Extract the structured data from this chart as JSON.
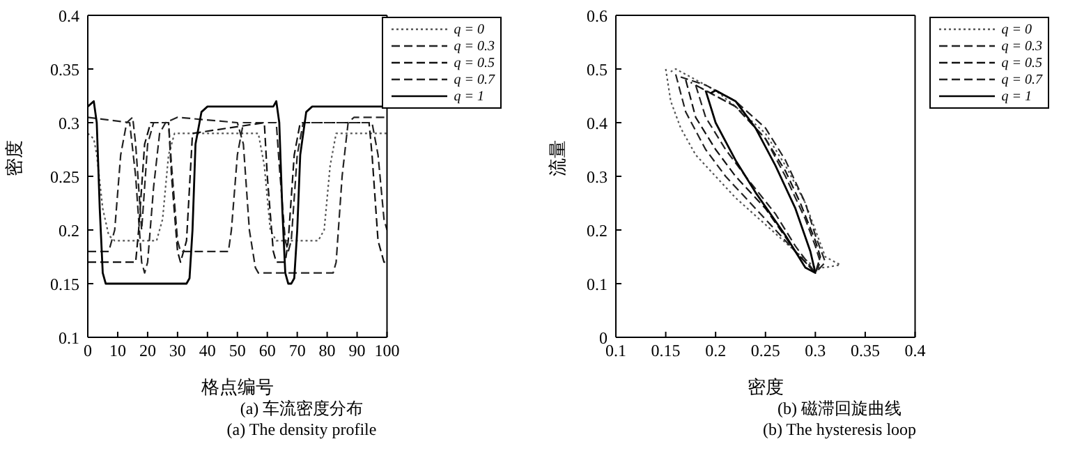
{
  "chart_data": [
    {
      "type": "line",
      "xlabel": "格点编号",
      "ylabel": "密度",
      "annotations": [
        "(a) 车流密度分布",
        "(a) The density profile"
      ],
      "xlim": [
        0,
        100
      ],
      "ylim": [
        0.1,
        0.4
      ],
      "xticks": [
        0,
        10,
        20,
        30,
        40,
        50,
        60,
        70,
        80,
        90,
        100
      ],
      "yticks": [
        0.1,
        0.15,
        0.2,
        0.25,
        0.3,
        0.35,
        0.4
      ],
      "legend": "top right",
      "series": [
        {
          "name": "q = 0",
          "color": "#555555",
          "line_style": "dotted",
          "x": [
            0,
            2,
            3,
            5,
            7,
            9,
            23,
            25,
            27,
            29,
            57,
            59,
            61,
            63,
            77,
            79,
            81,
            83,
            100
          ],
          "values": [
            0.29,
            0.285,
            0.27,
            0.22,
            0.195,
            0.19,
            0.19,
            0.21,
            0.27,
            0.29,
            0.29,
            0.26,
            0.2,
            0.19,
            0.19,
            0.2,
            0.26,
            0.29,
            0.29
          ]
        },
        {
          "name": "q = 0.3",
          "color": "#222222",
          "line_style": "dashed",
          "x": [
            0,
            14,
            16,
            18,
            19,
            20,
            22,
            24,
            26,
            30,
            50,
            52,
            54,
            56,
            57,
            82,
            83,
            85,
            87,
            89,
            100
          ],
          "values": [
            0.305,
            0.3,
            0.25,
            0.17,
            0.16,
            0.17,
            0.24,
            0.29,
            0.3,
            0.305,
            0.3,
            0.28,
            0.2,
            0.165,
            0.16,
            0.16,
            0.17,
            0.25,
            0.3,
            0.305,
            0.305
          ]
        },
        {
          "name": "q = 0.5",
          "color": "#111111",
          "line_style": "dashed",
          "x": [
            0,
            16,
            17,
            19,
            21,
            27,
            28,
            30,
            31,
            33,
            35,
            59,
            60,
            62,
            63,
            66,
            67,
            69,
            71,
            94,
            95,
            97,
            99,
            100
          ],
          "values": [
            0.17,
            0.17,
            0.2,
            0.28,
            0.3,
            0.3,
            0.25,
            0.18,
            0.17,
            0.19,
            0.29,
            0.3,
            0.25,
            0.18,
            0.17,
            0.17,
            0.19,
            0.27,
            0.3,
            0.3,
            0.27,
            0.19,
            0.17,
            0.17
          ]
        },
        {
          "name": "q = 0.7",
          "color": "#222222",
          "line_style": "dashed",
          "x": [
            0,
            7,
            9,
            11,
            13,
            15,
            16,
            18,
            20,
            22,
            27,
            28,
            30,
            31,
            47,
            48,
            50,
            52,
            63,
            64,
            66,
            67,
            68,
            70,
            72,
            95,
            97,
            99,
            100
          ],
          "values": [
            0.18,
            0.18,
            0.2,
            0.27,
            0.3,
            0.305,
            0.28,
            0.2,
            0.28,
            0.3,
            0.3,
            0.26,
            0.19,
            0.18,
            0.18,
            0.2,
            0.27,
            0.3,
            0.3,
            0.26,
            0.19,
            0.18,
            0.19,
            0.27,
            0.3,
            0.3,
            0.27,
            0.21,
            0.2
          ]
        },
        {
          "name": "q = 1",
          "color": "#000000",
          "line_style": "solid",
          "x": [
            0,
            2,
            3,
            4,
            5,
            6,
            33,
            34,
            35,
            36,
            38,
            40,
            62,
            63,
            64,
            65,
            66,
            67,
            68,
            69,
            70,
            71,
            73,
            75,
            100
          ],
          "values": [
            0.315,
            0.32,
            0.3,
            0.22,
            0.16,
            0.15,
            0.15,
            0.155,
            0.2,
            0.28,
            0.31,
            0.315,
            0.315,
            0.32,
            0.3,
            0.22,
            0.16,
            0.15,
            0.15,
            0.155,
            0.2,
            0.27,
            0.31,
            0.315,
            0.315
          ]
        }
      ]
    },
    {
      "type": "line",
      "xlabel": "密度",
      "ylabel": "流量",
      "annotations": [
        "(b) 磁滞回旋曲线",
        "(b) The hysteresis loop"
      ],
      "xlim": [
        0.1,
        0.4
      ],
      "ylim": [
        0,
        0.6
      ],
      "xticks": [
        0.1,
        0.15,
        0.2,
        0.25,
        0.3,
        0.35,
        0.4
      ],
      "yticks": [
        0,
        0.1,
        0.2,
        0.3,
        0.4,
        0.5,
        0.6
      ],
      "legend": "top right",
      "series": [
        {
          "name": "q = 0",
          "color": "#555555",
          "line_style": "dotted",
          "x": [
            0.15,
            0.155,
            0.165,
            0.18,
            0.2,
            0.22,
            0.25,
            0.28,
            0.3,
            0.31,
            0.325,
            0.32,
            0.31,
            0.3,
            0.29,
            0.27,
            0.25,
            0.22,
            0.2,
            0.18,
            0.16,
            0.155
          ],
          "values": [
            0.5,
            0.44,
            0.39,
            0.34,
            0.3,
            0.26,
            0.21,
            0.16,
            0.13,
            0.13,
            0.135,
            0.14,
            0.15,
            0.2,
            0.25,
            0.32,
            0.38,
            0.43,
            0.46,
            0.48,
            0.5,
            0.495
          ]
        },
        {
          "name": "q = 0.3",
          "color": "#222222",
          "line_style": "dashed",
          "x": [
            0.16,
            0.17,
            0.19,
            0.21,
            0.24,
            0.27,
            0.29,
            0.3,
            0.31,
            0.3,
            0.29,
            0.27,
            0.25,
            0.22,
            0.19,
            0.165
          ],
          "values": [
            0.49,
            0.42,
            0.35,
            0.3,
            0.24,
            0.18,
            0.14,
            0.12,
            0.14,
            0.19,
            0.25,
            0.33,
            0.39,
            0.44,
            0.47,
            0.485
          ]
        },
        {
          "name": "q = 0.5",
          "color": "#111111",
          "line_style": "dashed",
          "x": [
            0.17,
            0.18,
            0.2,
            0.22,
            0.25,
            0.28,
            0.3,
            0.305,
            0.3,
            0.285,
            0.27,
            0.25,
            0.22,
            0.2,
            0.175
          ],
          "values": [
            0.48,
            0.41,
            0.35,
            0.3,
            0.24,
            0.16,
            0.12,
            0.15,
            0.18,
            0.25,
            0.31,
            0.37,
            0.43,
            0.45,
            0.475
          ]
        },
        {
          "name": "q = 0.7",
          "color": "#222222",
          "line_style": "dashed",
          "x": [
            0.18,
            0.19,
            0.21,
            0.23,
            0.26,
            0.28,
            0.3,
            0.305,
            0.3,
            0.29,
            0.27,
            0.25,
            0.22,
            0.2,
            0.185
          ],
          "values": [
            0.47,
            0.41,
            0.35,
            0.3,
            0.23,
            0.17,
            0.12,
            0.14,
            0.17,
            0.22,
            0.3,
            0.37,
            0.43,
            0.45,
            0.465
          ]
        },
        {
          "name": "q = 1",
          "color": "#000000",
          "line_style": "solid",
          "x": [
            0.19,
            0.2,
            0.22,
            0.24,
            0.27,
            0.29,
            0.3,
            0.295,
            0.28,
            0.26,
            0.24,
            0.22,
            0.2,
            0.195
          ],
          "values": [
            0.46,
            0.4,
            0.33,
            0.27,
            0.19,
            0.13,
            0.12,
            0.16,
            0.24,
            0.32,
            0.39,
            0.44,
            0.46,
            0.455
          ]
        }
      ]
    }
  ]
}
